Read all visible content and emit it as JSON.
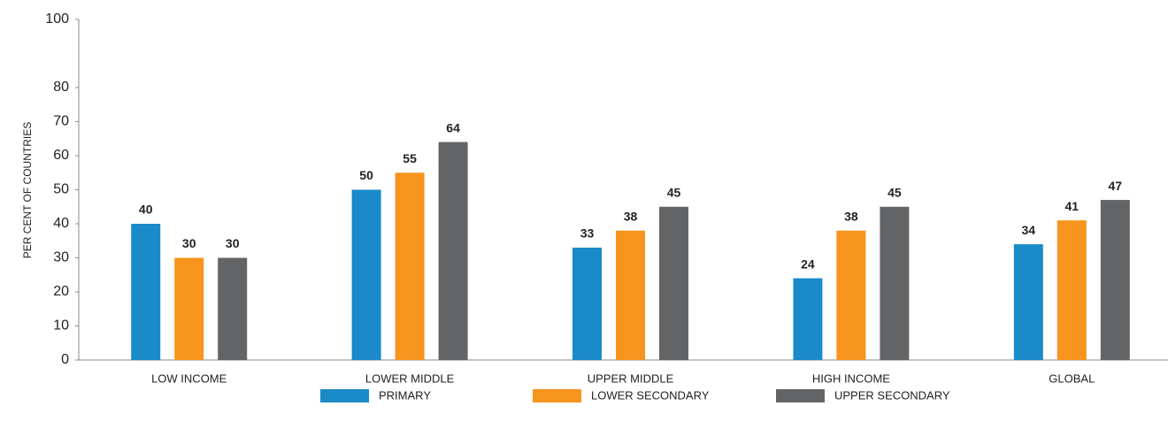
{
  "chart_data": {
    "type": "bar",
    "y_label": "PER CENT OF COUNTRIES",
    "categories": [
      "LOW INCOME",
      "LOWER MIDDLE",
      "UPPER MIDDLE",
      "HIGH INCOME",
      "GLOBAL"
    ],
    "series": [
      {
        "name": "PRIMARY",
        "color": "#1a8ac9",
        "values": [
          40,
          50,
          33,
          24,
          34
        ]
      },
      {
        "name": "LOWER SECONDARY",
        "color": "#f7941d",
        "values": [
          30,
          55,
          38,
          38,
          41
        ]
      },
      {
        "name": "UPPER SECONDARY",
        "color": "#636466",
        "values": [
          30,
          64,
          45,
          45,
          47
        ]
      }
    ],
    "ylim": [
      0,
      100
    ],
    "yticks": [
      0,
      10,
      20,
      30,
      40,
      50,
      60,
      70,
      80,
      100
    ],
    "grid": false,
    "legend": "bottom"
  }
}
